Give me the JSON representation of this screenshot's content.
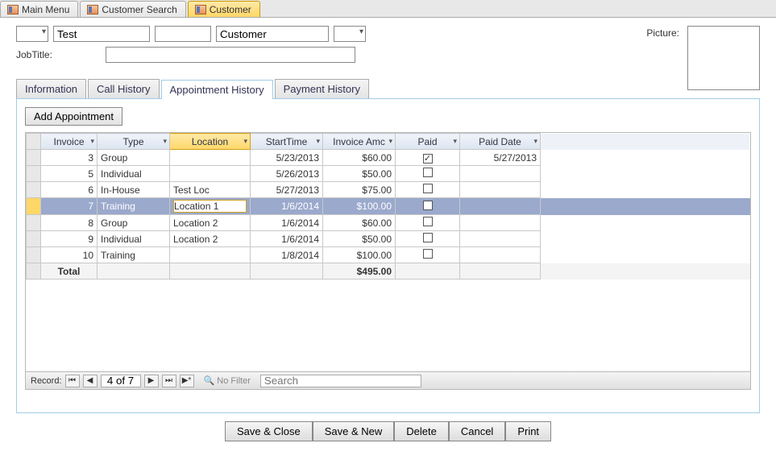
{
  "mainTabs": [
    {
      "label": "Main Menu",
      "active": false
    },
    {
      "label": "Customer Search",
      "active": false
    },
    {
      "label": "Customer",
      "active": true
    }
  ],
  "form": {
    "first": "Test",
    "last": "Customer",
    "jobTitleLabel": "JobTitle:",
    "pictureLabel": "Picture:"
  },
  "subTabs": [
    {
      "label": "Information",
      "active": false
    },
    {
      "label": "Call History",
      "active": false
    },
    {
      "label": "Appointment History",
      "active": true
    },
    {
      "label": "Payment History",
      "active": false
    }
  ],
  "addBtn": "Add Appointment",
  "grid": {
    "columns": [
      {
        "label": "Invoice",
        "width": 70,
        "sorted": false,
        "align": "right"
      },
      {
        "label": "Type",
        "width": 90,
        "sorted": false,
        "align": "left"
      },
      {
        "label": "Location",
        "width": 100,
        "sorted": true,
        "align": "left"
      },
      {
        "label": "StartTime",
        "width": 90,
        "sorted": false,
        "align": "right"
      },
      {
        "label": "Invoice Amc",
        "width": 90,
        "sorted": false,
        "align": "right"
      },
      {
        "label": "Paid",
        "width": 80,
        "sorted": false,
        "align": "center"
      },
      {
        "label": "Paid Date",
        "width": 100,
        "sorted": false,
        "align": "right"
      }
    ],
    "rows": [
      {
        "invoice": "3",
        "type": "Group",
        "location": "",
        "start": "5/23/2013",
        "amt": "$60.00",
        "paid": true,
        "paidDate": "5/27/2013",
        "selected": false
      },
      {
        "invoice": "5",
        "type": "Individual",
        "location": "",
        "start": "5/26/2013",
        "amt": "$50.00",
        "paid": false,
        "paidDate": "",
        "selected": false
      },
      {
        "invoice": "6",
        "type": "In-House",
        "location": "Test Loc",
        "start": "5/27/2013",
        "amt": "$75.00",
        "paid": false,
        "paidDate": "",
        "selected": false
      },
      {
        "invoice": "7",
        "type": "Training",
        "location": "Location 1",
        "start": "1/6/2014",
        "amt": "$100.00",
        "paid": false,
        "paidDate": "",
        "selected": true
      },
      {
        "invoice": "8",
        "type": "Group",
        "location": "Location 2",
        "start": "1/6/2014",
        "amt": "$60.00",
        "paid": false,
        "paidDate": "",
        "selected": false
      },
      {
        "invoice": "9",
        "type": "Individual",
        "location": "Location 2",
        "start": "1/6/2014",
        "amt": "$50.00",
        "paid": false,
        "paidDate": "",
        "selected": false
      },
      {
        "invoice": "10",
        "type": "Training",
        "location": "",
        "start": "1/8/2014",
        "amt": "$100.00",
        "paid": false,
        "paidDate": "",
        "selected": false
      }
    ],
    "totalLabel": "Total",
    "totalAmt": "$495.00"
  },
  "recordNav": {
    "label": "Record:",
    "pos": "4 of 7",
    "noFilter": "No Filter",
    "searchPlaceholder": "Search"
  },
  "bottomButtons": [
    "Save & Close",
    "Save & New",
    "Delete",
    "Cancel",
    "Print"
  ],
  "colors": {
    "activeTab": "#ffd767",
    "selectedRow": "#9aa9cc",
    "panelBorder": "#9fcce6"
  }
}
